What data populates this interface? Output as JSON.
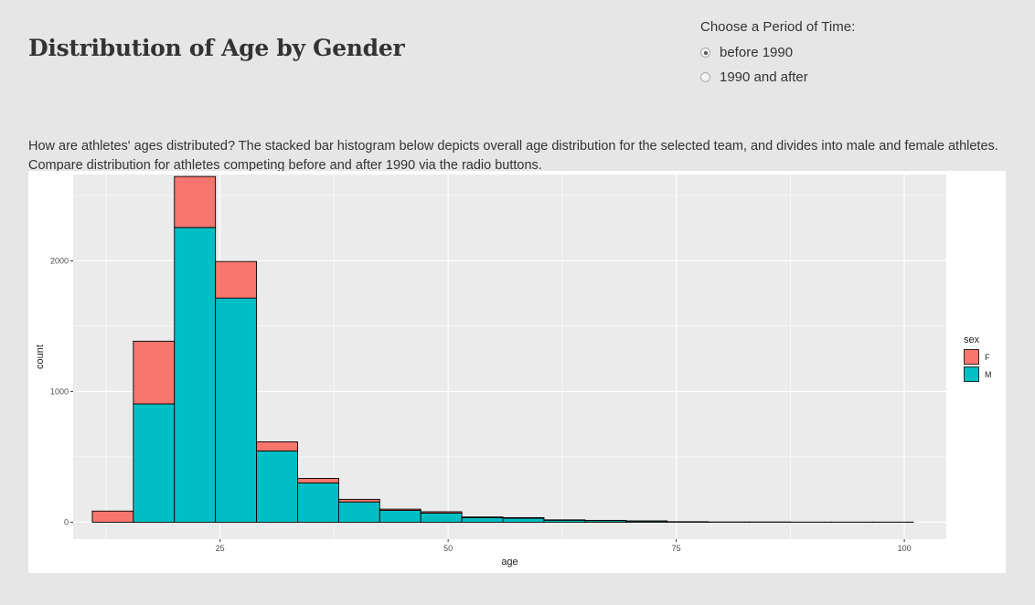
{
  "page": {
    "title": "Distribution of Age by Gender",
    "description": "How are athletes' ages distributed? The stacked bar histogram below depicts overall age distribution for the selected team, and divides into male and female athletes. Compare distribution for athletes competing before and after 1990 via the radio buttons."
  },
  "controls": {
    "radio_label": "Choose a Period of Time:",
    "options": [
      {
        "label": "before 1990",
        "selected": true
      },
      {
        "label": "1990 and after",
        "selected": false
      }
    ]
  },
  "colors": {
    "female": "#F8766D",
    "male": "#00BFC4",
    "panel": "#ebebeb",
    "grid": "#ffffff"
  },
  "chart_data": {
    "type": "bar",
    "stacked": true,
    "title": "",
    "xlabel": "age",
    "ylabel": "count",
    "xlim": [
      8.9,
      104.6
    ],
    "ylim": [
      -130,
      2660
    ],
    "xticks": [
      25,
      50,
      75,
      100
    ],
    "yticks": [
      0,
      1000,
      2000
    ],
    "bin_width": 4.5,
    "bin_starts": [
      11,
      15.5,
      20,
      24.5,
      29,
      33.5,
      38,
      42.5,
      47,
      51.5,
      56,
      60.5,
      65,
      69.5,
      74,
      78.5,
      83,
      87.5,
      92,
      96.5
    ],
    "series": [
      {
        "name": "M",
        "values": [
          0,
          905,
          2255,
          1715,
          545,
          300,
          155,
          90,
          70,
          35,
          30,
          15,
          12,
          8,
          3,
          2,
          2,
          1,
          1,
          1
        ]
      },
      {
        "name": "F",
        "values": [
          85,
          480,
          390,
          280,
          70,
          35,
          20,
          10,
          10,
          5,
          5,
          3,
          2,
          2,
          1,
          0,
          0,
          0,
          0,
          0
        ]
      }
    ],
    "legend": {
      "title": "sex",
      "entries": [
        "F",
        "M"
      ],
      "position": "right"
    },
    "grid": true
  }
}
